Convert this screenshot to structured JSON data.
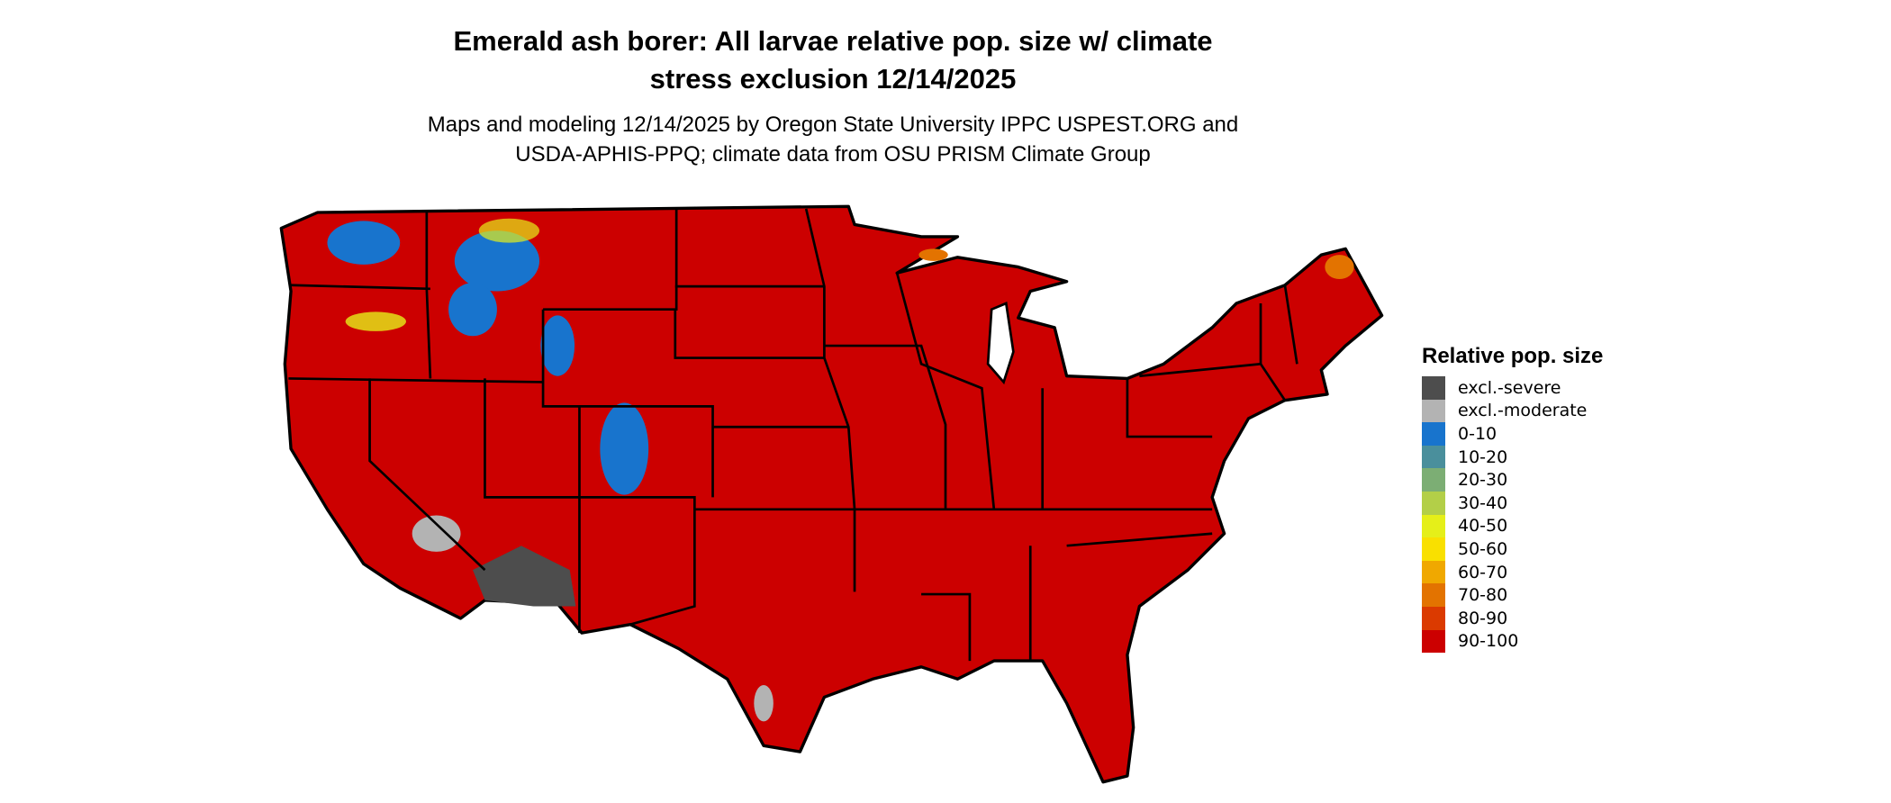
{
  "title_line1": "Emerald ash borer: All larvae relative pop. size w/ climate",
  "title_line2": "stress exclusion 12/14/2025",
  "subtitle_line1": "Maps and modeling 12/14/2025 by Oregon State University IPPC USPEST.ORG and",
  "subtitle_line2": "USDA-APHIS-PPQ; climate data from OSU PRISM Climate Group",
  "legend": {
    "title": "Relative pop. size",
    "items": [
      {
        "label": "excl.-severe",
        "color": "#4d4d4d"
      },
      {
        "label": "excl.-moderate",
        "color": "#b3b3b3"
      },
      {
        "label": "0-10",
        "color": "#1874cd"
      },
      {
        "label": "10-20",
        "color": "#4a8f9c"
      },
      {
        "label": "20-30",
        "color": "#7cae74"
      },
      {
        "label": "30-40",
        "color": "#b3cf48"
      },
      {
        "label": "40-50",
        "color": "#e5ef19"
      },
      {
        "label": "50-60",
        "color": "#f9e000"
      },
      {
        "label": "60-70",
        "color": "#f0a800"
      },
      {
        "label": "70-80",
        "color": "#e37300"
      },
      {
        "label": "80-90",
        "color": "#db3a00"
      },
      {
        "label": "90-100",
        "color": "#cc0000"
      }
    ]
  }
}
